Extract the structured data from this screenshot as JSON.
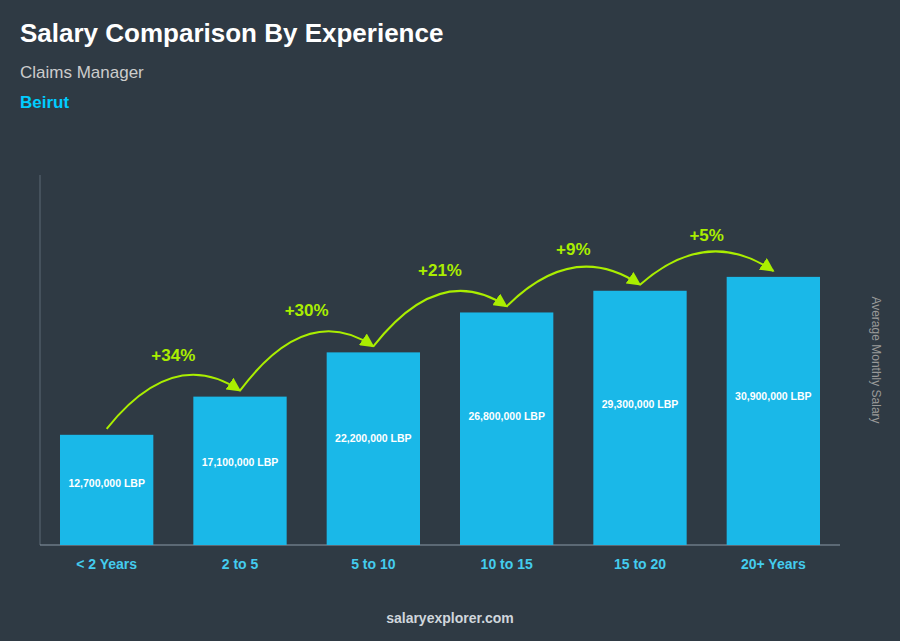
{
  "chart_data": {
    "type": "bar",
    "title": "Salary Comparison By Experience",
    "subtitle": "Claims Manager",
    "city": "Beirut",
    "ylabel": "Average Monthly Salary",
    "watermark": "salaryexplorer.com",
    "categories": [
      "< 2 Years",
      "2 to 5",
      "5 to 10",
      "10 to 15",
      "15 to 20",
      "20+ Years"
    ],
    "values": [
      12700000,
      17100000,
      22200000,
      26800000,
      29300000,
      30900000
    ],
    "value_labels": [
      "12,700,000 LBP",
      "17,100,000 LBP",
      "22,200,000 LBP",
      "26,800,000 LBP",
      "29,300,000 LBP",
      "30,900,000 LBP"
    ],
    "pct_changes": [
      "+34%",
      "+30%",
      "+21%",
      "+9%",
      "+5%"
    ],
    "color": "#1ab8e8",
    "ylim": [
      0,
      42642000
    ],
    "data_labels": true,
    "tick_labels": false,
    "grid": false
  }
}
